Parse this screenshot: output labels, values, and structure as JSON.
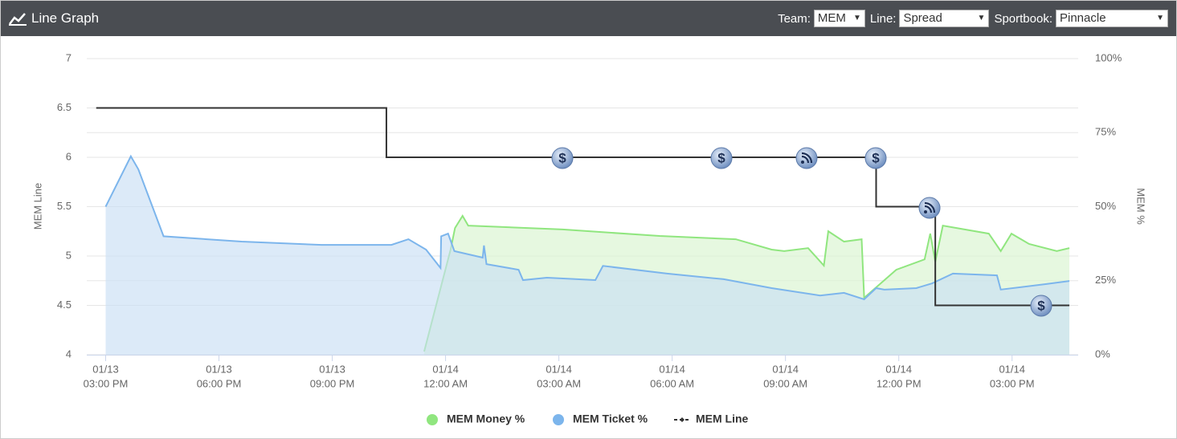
{
  "header": {
    "title": "Line Graph",
    "filters": [
      {
        "label": "Team:",
        "value": "MEM"
      },
      {
        "label": "Line:",
        "value": "Spread"
      },
      {
        "label": "Sportbook:",
        "value": "Pinnacle"
      }
    ]
  },
  "chart_data": {
    "type": "line",
    "ylabel": "MEM Line",
    "y2label": "MEM %",
    "xlim": [
      "01/13 02:30 PM",
      "01/14 04:45 PM"
    ],
    "xticks": [
      {
        "value": "01/13 03:00 PM",
        "label": [
          "01/13",
          "03:00 PM"
        ]
      },
      {
        "value": "01/13 06:00 PM",
        "label": [
          "01/13",
          "06:00 PM"
        ]
      },
      {
        "value": "01/13 09:00 PM",
        "label": [
          "01/13",
          "09:00 PM"
        ]
      },
      {
        "value": "01/14 12:00 AM",
        "label": [
          "01/14",
          "12:00 AM"
        ]
      },
      {
        "value": "01/14 03:00 AM",
        "label": [
          "01/14",
          "03:00 AM"
        ]
      },
      {
        "value": "01/14 06:00 AM",
        "label": [
          "01/14",
          "06:00 AM"
        ]
      },
      {
        "value": "01/14 09:00 AM",
        "label": [
          "01/14",
          "09:00 AM"
        ]
      },
      {
        "value": "01/14 12:00 PM",
        "label": [
          "01/14",
          "12:00 PM"
        ]
      },
      {
        "value": "01/14 03:00 PM",
        "label": [
          "01/14",
          "03:00 PM"
        ]
      }
    ],
    "ylim": [
      4,
      7
    ],
    "yticks": [
      4,
      4.5,
      5,
      5.5,
      6,
      6.5,
      7
    ],
    "y2lim": [
      0,
      100
    ],
    "y2ticks": [
      {
        "value": 0,
        "label": "0%"
      },
      {
        "value": 25,
        "label": "25%"
      },
      {
        "value": 50,
        "label": "50%"
      },
      {
        "value": 75,
        "label": "75%"
      },
      {
        "value": 100,
        "label": "100%"
      }
    ],
    "grid": true,
    "series": [
      {
        "name": "MEM Money %",
        "color": "#90e67f",
        "fill": "#d8f5d0",
        "axis": "y2",
        "style": "area",
        "x": [
          "01/13 11:26 PM",
          "01/14 12:08 AM",
          "01/14 12:15 AM",
          "01/14 12:27 AM",
          "01/14 12:36 AM",
          "01/14 03:06 AM",
          "01/14 05:40 AM",
          "01/14 07:41 AM",
          "01/14 08:38 AM",
          "01/14 08:58 AM",
          "01/14 09:36 AM",
          "01/14 10:01 AM",
          "01/14 10:08 AM",
          "01/14 10:33 AM",
          "01/14 11:01 AM",
          "01/14 11:05 AM",
          "01/14 11:56 AM",
          "01/14 12:41 PM",
          "01/14 12:50 PM",
          "01/14 12:58 PM",
          "01/14 01:10 PM",
          "01/14 02:23 PM",
          "01/14 02:42 PM",
          "01/14 02:59 PM",
          "01/14 03:27 PM",
          "01/14 04:11 PM",
          "01/14 04:31 PM"
        ],
        "values": [
          1.1,
          35.5,
          42.8,
          46.9,
          43.6,
          42.3,
          40.1,
          39,
          35.5,
          35,
          36,
          30.1,
          41.7,
          38.2,
          39,
          19.2,
          28.7,
          32.2,
          40.9,
          31.4,
          43.6,
          40.9,
          35,
          40.9,
          37.4,
          35,
          36
        ]
      },
      {
        "name": "MEM Ticket %",
        "color": "#7cb5ec",
        "fill": "#c9def4",
        "axis": "y2",
        "style": "area",
        "x": [
          "01/13 03:00 PM",
          "01/13 03:40 PM",
          "01/13 03:52 PM",
          "01/13 04:32 PM",
          "01/13 06:36 PM",
          "01/13 08:43 PM",
          "01/13 10:34 PM",
          "01/13 11:01 PM",
          "01/13 11:29 PM",
          "01/13 11:52 PM",
          "01/13 11:53 PM",
          "01/14 12:04 AM",
          "01/14 12:14 AM",
          "01/14 12:59 AM",
          "01/14 01:01 AM",
          "01/14 01:05 AM",
          "01/14 01:56 AM",
          "01/14 02:03 AM",
          "01/14 02:41 AM",
          "01/14 03:58 AM",
          "01/14 04:10 AM",
          "01/14 05:52 AM",
          "01/14 07:22 AM",
          "01/14 08:38 AM",
          "01/14 09:55 AM",
          "01/14 10:33 AM",
          "01/14 11:05 AM",
          "01/14 11:24 AM",
          "01/14 11:37 AM",
          "01/14 12:28 PM",
          "01/14 12:53 PM",
          "01/14 01:26 PM",
          "01/14 02:36 PM",
          "01/14 02:42 PM",
          "01/14 03:52 PM",
          "01/14 04:31 PM"
        ],
        "values": [
          50,
          67,
          62.6,
          40,
          38.2,
          37.1,
          37.1,
          39,
          35.5,
          29.3,
          40,
          40.9,
          35,
          32.8,
          36.9,
          30.6,
          28.7,
          25.2,
          26,
          25.2,
          30,
          27.4,
          25.5,
          22.5,
          20,
          20.9,
          18.7,
          22.5,
          22,
          22.5,
          24.1,
          27.4,
          26.8,
          22,
          23.8,
          24.9
        ]
      },
      {
        "name": "MEM Line",
        "color": "#333333",
        "axis": "y",
        "style": "step",
        "x": [
          "01/13 02:45 PM",
          "01/13 10:26 PM",
          "01/14 11:24 AM",
          "01/14 12:58 PM",
          "01/14 04:31 PM"
        ],
        "values": [
          6.5,
          6,
          5.5,
          4.5,
          4.5
        ]
      }
    ]
  }
}
